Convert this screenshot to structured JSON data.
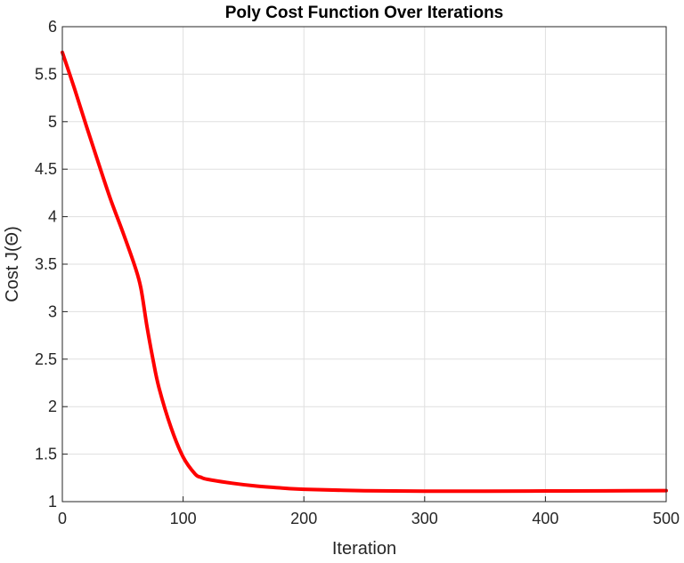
{
  "chart_data": {
    "type": "line",
    "title": "Poly Cost Function Over Iterations",
    "xlabel": "Iteration",
    "ylabel": "Cost J(Θ)",
    "xlim": [
      0,
      500
    ],
    "ylim": [
      1,
      6
    ],
    "xticks": [
      0,
      100,
      200,
      300,
      400,
      500
    ],
    "yticks": [
      1,
      1.5,
      2,
      2.5,
      3,
      3.5,
      4,
      4.5,
      5,
      5.5,
      6
    ],
    "xtick_labels": [
      "0",
      "100",
      "200",
      "300",
      "400",
      "500"
    ],
    "ytick_labels": [
      "1",
      "1.5",
      "2",
      "2.5",
      "3",
      "3.5",
      "4",
      "4.5",
      "5",
      "5.5",
      "6"
    ],
    "grid": true,
    "series": [
      {
        "color": "#ff0000",
        "x": [
          0,
          10,
          20,
          30,
          40,
          50,
          60,
          65,
          70,
          75,
          80,
          90,
          100,
          110,
          115,
          120,
          140,
          160,
          180,
          200,
          250,
          300,
          350,
          400,
          450,
          500
        ],
        "y": [
          5.73,
          5.35,
          4.95,
          4.56,
          4.18,
          3.84,
          3.48,
          3.25,
          2.85,
          2.5,
          2.2,
          1.78,
          1.47,
          1.29,
          1.255,
          1.235,
          1.195,
          1.165,
          1.145,
          1.13,
          1.115,
          1.11,
          1.11,
          1.112,
          1.114,
          1.116
        ]
      }
    ]
  }
}
